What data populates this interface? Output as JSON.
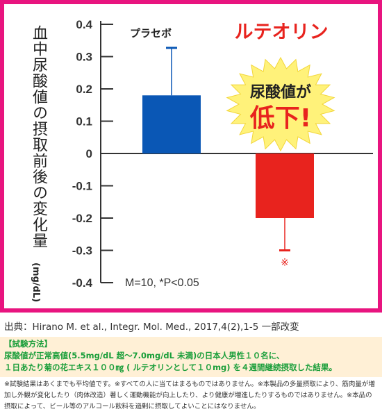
{
  "chart_data": {
    "type": "bar",
    "ylabel": "血中尿酸値の摂取前後の変化量",
    "yunit": "(mg/dL)",
    "ylim": [
      -0.4,
      0.4
    ],
    "yticks": [
      "0.4",
      "0.3",
      "0.2",
      "0.1",
      "0",
      "-0.1",
      "-0.2",
      "-0.3",
      "-0.4"
    ],
    "grid": false,
    "series": [
      {
        "name": "プラセボ",
        "value": 0.18,
        "error": 0.147,
        "color": "#0a57b5"
      },
      {
        "name": "ルテオリン",
        "value": -0.2,
        "error": 0.1,
        "color": "#e8231e",
        "significance": "※"
      }
    ],
    "annotation_main": "尿酸値が",
    "annotation_sub": "低下!",
    "stats_note": "M=10, *P<0.05"
  },
  "colors": {
    "frame": "#e8147f",
    "placebo": "#0a57b5",
    "luteolin": "#e8231e",
    "burst": "#fff27a",
    "method_text": "#1a9e3a"
  },
  "citation": "出典：Hirano M. et al., Integr. Mol. Med., 2017,4(2),1-5 一部改変",
  "method": {
    "title": "【試験方法】",
    "line1": "尿酸値が正常高値(5.5mg/dL 超～7.0mg/dL 未満)の日本人男性１０名に、",
    "line2": "１日あたり菊の花エキス１００㎎ ( ルテオリンとして１０mg) を４週間継続摂取した結果。"
  },
  "disclaimer": "※試験結果はあくまでも平均値です。※すべての人に当てはまるものではありません。※本製品の多量摂取により、筋肉量が増加し外観が変化したり（肉体改造）著しく運動機能が向上したり、より健康が増進したりするものではありません。※本品の摂取によって、ビール等のアルコール飲料を過剰に摂取してよいことにはなりません。"
}
